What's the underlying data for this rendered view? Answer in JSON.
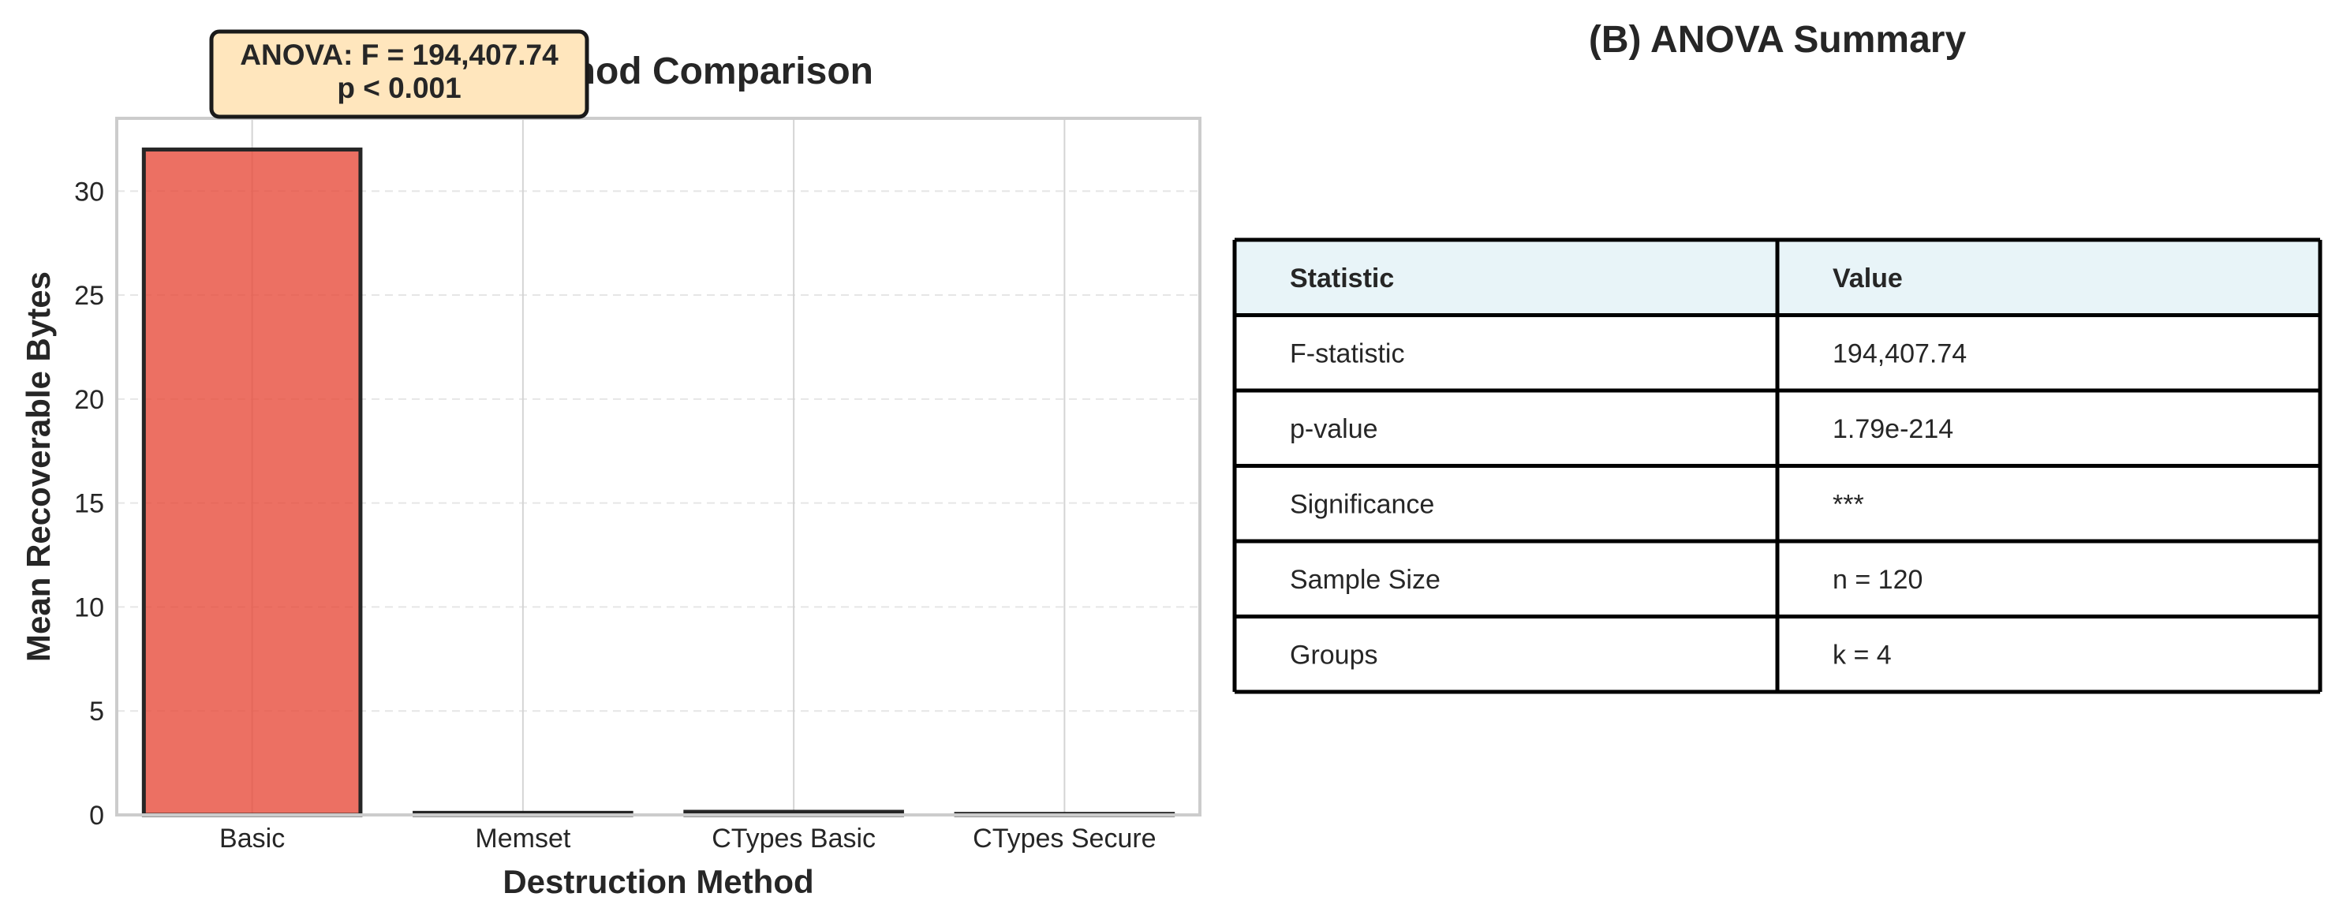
{
  "chart_data": [
    {
      "type": "bar",
      "title": "(A) Method Comparison",
      "xlabel": "Destruction Method",
      "ylabel": "Mean Recoverable Bytes",
      "categories": [
        "Basic",
        "Memset",
        "CTypes Basic",
        "CTypes Secure"
      ],
      "values": [
        32.0,
        0.1,
        0.15,
        0.05
      ],
      "ylim": [
        0,
        33.5
      ],
      "yticks": [
        0,
        5,
        10,
        15,
        20,
        25,
        30
      ],
      "ytick_labels": [
        "0",
        "5",
        "10",
        "15",
        "20",
        "25",
        "30"
      ],
      "grid": true,
      "bar_colors": [
        "#e74c3c",
        "#e74c3c",
        "#e74c3c",
        "#e74c3c"
      ],
      "annotation": {
        "line1": "ANOVA: F = 194,407.74",
        "line2": "p < 0.001",
        "box_color": "#ffe6bd"
      }
    },
    {
      "type": "table",
      "title": "(B) ANOVA Summary",
      "header_color": "#e8f4f8",
      "columns": [
        "Statistic",
        "Value"
      ],
      "rows": [
        [
          "F-statistic",
          "194,407.74"
        ],
        [
          "p-value",
          "1.79e-214"
        ],
        [
          "Significance",
          "***"
        ],
        [
          "Sample Size",
          "n = 120"
        ],
        [
          "Groups",
          "k = 4"
        ]
      ]
    }
  ]
}
